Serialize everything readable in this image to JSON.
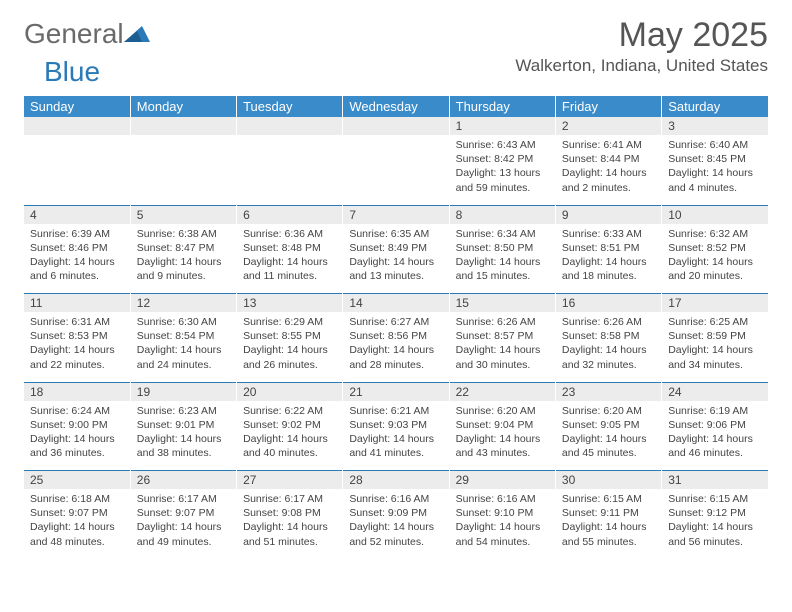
{
  "logo": {
    "word1": "General",
    "word2": "Blue"
  },
  "title": "May 2025",
  "location": "Walkerton, Indiana, United States",
  "colors": {
    "header_bg": "#3a8bc9",
    "header_text": "#ffffff",
    "daynum_bg": "#ececec",
    "row_border": "#2a7ab8",
    "logo_gray": "#6a6a6a",
    "logo_blue": "#2a7ab8"
  },
  "day_headers": [
    "Sunday",
    "Monday",
    "Tuesday",
    "Wednesday",
    "Thursday",
    "Friday",
    "Saturday"
  ],
  "weeks": [
    [
      null,
      null,
      null,
      null,
      {
        "n": "1",
        "sunrise": "Sunrise: 6:43 AM",
        "sunset": "Sunset: 8:42 PM",
        "daylight": "Daylight: 13 hours and 59 minutes."
      },
      {
        "n": "2",
        "sunrise": "Sunrise: 6:41 AM",
        "sunset": "Sunset: 8:44 PM",
        "daylight": "Daylight: 14 hours and 2 minutes."
      },
      {
        "n": "3",
        "sunrise": "Sunrise: 6:40 AM",
        "sunset": "Sunset: 8:45 PM",
        "daylight": "Daylight: 14 hours and 4 minutes."
      }
    ],
    [
      {
        "n": "4",
        "sunrise": "Sunrise: 6:39 AM",
        "sunset": "Sunset: 8:46 PM",
        "daylight": "Daylight: 14 hours and 6 minutes."
      },
      {
        "n": "5",
        "sunrise": "Sunrise: 6:38 AM",
        "sunset": "Sunset: 8:47 PM",
        "daylight": "Daylight: 14 hours and 9 minutes."
      },
      {
        "n": "6",
        "sunrise": "Sunrise: 6:36 AM",
        "sunset": "Sunset: 8:48 PM",
        "daylight": "Daylight: 14 hours and 11 minutes."
      },
      {
        "n": "7",
        "sunrise": "Sunrise: 6:35 AM",
        "sunset": "Sunset: 8:49 PM",
        "daylight": "Daylight: 14 hours and 13 minutes."
      },
      {
        "n": "8",
        "sunrise": "Sunrise: 6:34 AM",
        "sunset": "Sunset: 8:50 PM",
        "daylight": "Daylight: 14 hours and 15 minutes."
      },
      {
        "n": "9",
        "sunrise": "Sunrise: 6:33 AM",
        "sunset": "Sunset: 8:51 PM",
        "daylight": "Daylight: 14 hours and 18 minutes."
      },
      {
        "n": "10",
        "sunrise": "Sunrise: 6:32 AM",
        "sunset": "Sunset: 8:52 PM",
        "daylight": "Daylight: 14 hours and 20 minutes."
      }
    ],
    [
      {
        "n": "11",
        "sunrise": "Sunrise: 6:31 AM",
        "sunset": "Sunset: 8:53 PM",
        "daylight": "Daylight: 14 hours and 22 minutes."
      },
      {
        "n": "12",
        "sunrise": "Sunrise: 6:30 AM",
        "sunset": "Sunset: 8:54 PM",
        "daylight": "Daylight: 14 hours and 24 minutes."
      },
      {
        "n": "13",
        "sunrise": "Sunrise: 6:29 AM",
        "sunset": "Sunset: 8:55 PM",
        "daylight": "Daylight: 14 hours and 26 minutes."
      },
      {
        "n": "14",
        "sunrise": "Sunrise: 6:27 AM",
        "sunset": "Sunset: 8:56 PM",
        "daylight": "Daylight: 14 hours and 28 minutes."
      },
      {
        "n": "15",
        "sunrise": "Sunrise: 6:26 AM",
        "sunset": "Sunset: 8:57 PM",
        "daylight": "Daylight: 14 hours and 30 minutes."
      },
      {
        "n": "16",
        "sunrise": "Sunrise: 6:26 AM",
        "sunset": "Sunset: 8:58 PM",
        "daylight": "Daylight: 14 hours and 32 minutes."
      },
      {
        "n": "17",
        "sunrise": "Sunrise: 6:25 AM",
        "sunset": "Sunset: 8:59 PM",
        "daylight": "Daylight: 14 hours and 34 minutes."
      }
    ],
    [
      {
        "n": "18",
        "sunrise": "Sunrise: 6:24 AM",
        "sunset": "Sunset: 9:00 PM",
        "daylight": "Daylight: 14 hours and 36 minutes."
      },
      {
        "n": "19",
        "sunrise": "Sunrise: 6:23 AM",
        "sunset": "Sunset: 9:01 PM",
        "daylight": "Daylight: 14 hours and 38 minutes."
      },
      {
        "n": "20",
        "sunrise": "Sunrise: 6:22 AM",
        "sunset": "Sunset: 9:02 PM",
        "daylight": "Daylight: 14 hours and 40 minutes."
      },
      {
        "n": "21",
        "sunrise": "Sunrise: 6:21 AM",
        "sunset": "Sunset: 9:03 PM",
        "daylight": "Daylight: 14 hours and 41 minutes."
      },
      {
        "n": "22",
        "sunrise": "Sunrise: 6:20 AM",
        "sunset": "Sunset: 9:04 PM",
        "daylight": "Daylight: 14 hours and 43 minutes."
      },
      {
        "n": "23",
        "sunrise": "Sunrise: 6:20 AM",
        "sunset": "Sunset: 9:05 PM",
        "daylight": "Daylight: 14 hours and 45 minutes."
      },
      {
        "n": "24",
        "sunrise": "Sunrise: 6:19 AM",
        "sunset": "Sunset: 9:06 PM",
        "daylight": "Daylight: 14 hours and 46 minutes."
      }
    ],
    [
      {
        "n": "25",
        "sunrise": "Sunrise: 6:18 AM",
        "sunset": "Sunset: 9:07 PM",
        "daylight": "Daylight: 14 hours and 48 minutes."
      },
      {
        "n": "26",
        "sunrise": "Sunrise: 6:17 AM",
        "sunset": "Sunset: 9:07 PM",
        "daylight": "Daylight: 14 hours and 49 minutes."
      },
      {
        "n": "27",
        "sunrise": "Sunrise: 6:17 AM",
        "sunset": "Sunset: 9:08 PM",
        "daylight": "Daylight: 14 hours and 51 minutes."
      },
      {
        "n": "28",
        "sunrise": "Sunrise: 6:16 AM",
        "sunset": "Sunset: 9:09 PM",
        "daylight": "Daylight: 14 hours and 52 minutes."
      },
      {
        "n": "29",
        "sunrise": "Sunrise: 6:16 AM",
        "sunset": "Sunset: 9:10 PM",
        "daylight": "Daylight: 14 hours and 54 minutes."
      },
      {
        "n": "30",
        "sunrise": "Sunrise: 6:15 AM",
        "sunset": "Sunset: 9:11 PM",
        "daylight": "Daylight: 14 hours and 55 minutes."
      },
      {
        "n": "31",
        "sunrise": "Sunrise: 6:15 AM",
        "sunset": "Sunset: 9:12 PM",
        "daylight": "Daylight: 14 hours and 56 minutes."
      }
    ]
  ]
}
